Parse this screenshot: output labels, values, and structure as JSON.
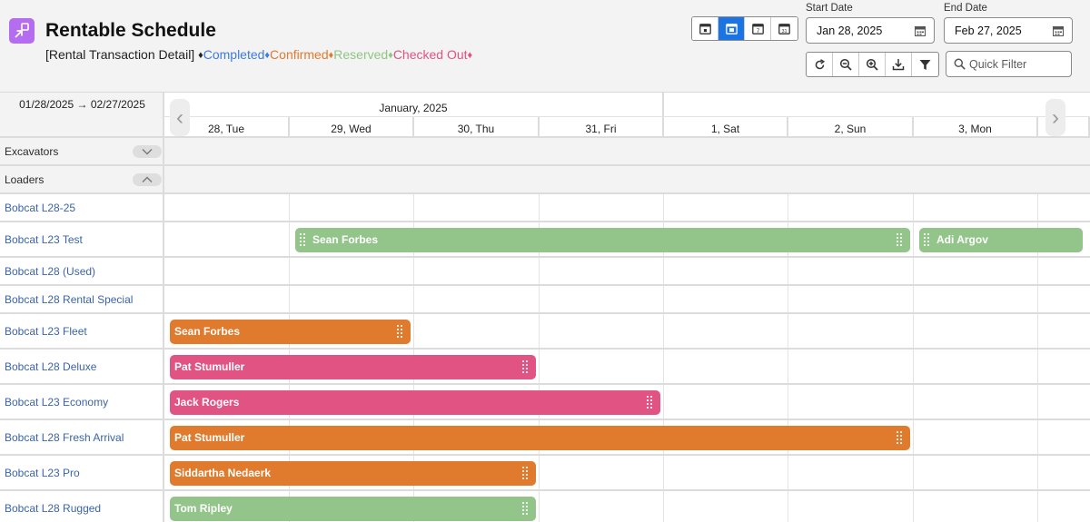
{
  "header": {
    "title": "Rentable Schedule",
    "legend_prefix": "[Rental Transaction Detail]",
    "legend": [
      {
        "label": "Completed",
        "color": "#3d7be2"
      },
      {
        "label": "Confirmed",
        "color": "#e07b2e"
      },
      {
        "label": "Reserved",
        "color": "#8fc585"
      },
      {
        "label": "Checked Out",
        "color": "#e05383"
      }
    ],
    "legend_end_color": "#e05383"
  },
  "toolbar": {
    "views": [
      {
        "name": "day-view",
        "icon": "calendar-day-icon",
        "active": false
      },
      {
        "name": "week-view",
        "icon": "calendar-week-icon",
        "active": true
      },
      {
        "name": "seven-day-view",
        "icon": "calendar-seven-icon",
        "active": false
      },
      {
        "name": "month-view",
        "icon": "calendar-month-icon",
        "active": false
      }
    ],
    "start_label": "Start Date",
    "start_value": "Jan 28, 2025",
    "end_label": "End Date",
    "end_value": "Feb 27, 2025",
    "tools": [
      "refresh-icon",
      "zoom-out-icon",
      "zoom-in-icon",
      "download-icon",
      "filter-icon"
    ],
    "quick_filter_placeholder": "Quick Filter"
  },
  "schedule": {
    "range_label": "01/28/2025 → 02/27/2025",
    "month_label": "January, 2025",
    "days": [
      "28, Tue",
      "29, Wed",
      "30, Thu",
      "31, Fri",
      "1, Sat",
      "2, Sun",
      "3, Mon"
    ],
    "rows": [
      {
        "type": "group",
        "label": "Excavators",
        "collapsed": true
      },
      {
        "type": "group",
        "label": "Loaders",
        "collapsed": false
      },
      {
        "type": "resource",
        "label": "Bobcat L28-25",
        "bars": []
      },
      {
        "type": "resource",
        "label": "Bobcat L23 Test",
        "bars": [
          {
            "label": "Sean Forbes",
            "status": "Reserved",
            "start_day": "29, Wed",
            "end_day": "2, Sun"
          },
          {
            "label": "Adi Argov",
            "status": "Reserved",
            "start_day": "3, Mon",
            "end_day": "3, Mon"
          }
        ]
      },
      {
        "type": "resource",
        "label": "Bobcat L28 (Used)",
        "bars": []
      },
      {
        "type": "resource",
        "label": "Bobcat L28 Rental Special",
        "bars": []
      },
      {
        "type": "resource",
        "label": "Bobcat L23 Fleet",
        "bars": [
          {
            "label": "Sean Forbes",
            "status": "Confirmed",
            "start_day": "28, Tue",
            "end_day": "29, Wed"
          }
        ]
      },
      {
        "type": "resource",
        "label": "Bobcat L28 Deluxe",
        "bars": [
          {
            "label": "Pat Stumuller",
            "status": "Checked Out",
            "start_day": "28, Tue",
            "end_day": "30, Thu"
          }
        ]
      },
      {
        "type": "resource",
        "label": "Bobcat L23 Economy",
        "bars": [
          {
            "label": "Jack Rogers",
            "status": "Checked Out",
            "start_day": "28, Tue",
            "end_day": "31, Fri"
          }
        ]
      },
      {
        "type": "resource",
        "label": "Bobcat L28 Fresh Arrival",
        "bars": [
          {
            "label": "Pat Stumuller",
            "status": "Confirmed",
            "start_day": "28, Tue",
            "end_day": "2, Sun"
          }
        ]
      },
      {
        "type": "resource",
        "label": "Bobcat L23 Pro",
        "bars": [
          {
            "label": "Siddartha Nedaerk",
            "status": "Confirmed",
            "start_day": "28, Tue",
            "end_day": "30, Thu"
          }
        ]
      },
      {
        "type": "resource",
        "label": "Bobcat L28 Rugged",
        "bars": [
          {
            "label": "Tom Ripley",
            "status": "Reserved",
            "start_day": "28, Tue",
            "end_day": "30, Thu"
          }
        ]
      }
    ]
  },
  "status_colors": {
    "Completed": "#3d7be2",
    "Confirmed": "#e07b2e",
    "Reserved": "#93c58b",
    "Checked Out": "#e05383"
  }
}
